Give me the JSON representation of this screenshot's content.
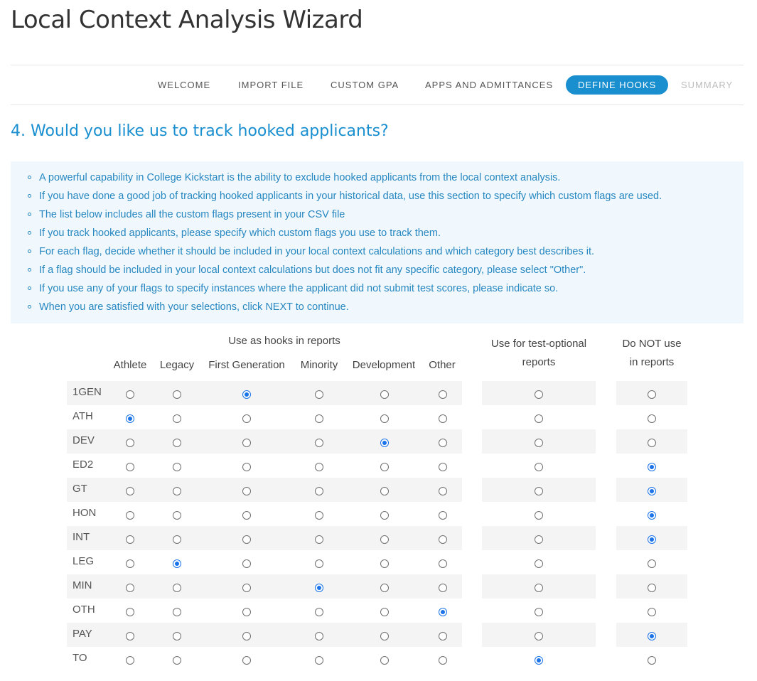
{
  "page": {
    "title": "Local Context Analysis Wizard"
  },
  "steps": [
    {
      "label": "WELCOME",
      "state": "done"
    },
    {
      "label": "IMPORT FILE",
      "state": "done"
    },
    {
      "label": "CUSTOM GPA",
      "state": "done"
    },
    {
      "label": "APPS AND ADMITTANCES",
      "state": "done"
    },
    {
      "label": "DEFINE HOOKS",
      "state": "active"
    },
    {
      "label": "SUMMARY",
      "state": "disabled"
    }
  ],
  "question": "4. Would you like us to track hooked applicants?",
  "instructions": [
    "A powerful capability in College Kickstart is the ability to exclude hooked applicants from the local context analysis.",
    "If you have done a good job of tracking hooked applicants in your historical data, use this section to specify which custom flags are used.",
    "The list below includes all the custom flags present in your CSV file",
    "If you track hooked applicants, please specify which custom flags you use to track them.",
    "For each flag, decide whether it should be included in your local context calculations and which category best describes it.",
    "If a flag should be included in your local context calculations but does not fit any specific category, please select \"Other\".",
    "If you use any of your flags to specify instances where the applicant did not submit test scores, please indicate so.",
    "When you are satisfied with your selections, click NEXT to continue."
  ],
  "table": {
    "group_header": "Use as hooks in reports",
    "hook_columns": [
      "Athlete",
      "Legacy",
      "First Generation",
      "Minority",
      "Development",
      "Other"
    ],
    "test_optional_header": [
      "Use for test-optional",
      "reports"
    ],
    "not_use_header": [
      "Do NOT use",
      "in reports"
    ],
    "option_keys": [
      "athlete",
      "legacy",
      "first_generation",
      "minority",
      "development",
      "other",
      "test_optional",
      "not_use"
    ],
    "rows": [
      {
        "flag": "1GEN",
        "selected": "first_generation"
      },
      {
        "flag": "ATH",
        "selected": "athlete"
      },
      {
        "flag": "DEV",
        "selected": "development"
      },
      {
        "flag": "ED2",
        "selected": "not_use"
      },
      {
        "flag": "GT",
        "selected": "not_use"
      },
      {
        "flag": "HON",
        "selected": "not_use"
      },
      {
        "flag": "INT",
        "selected": "not_use"
      },
      {
        "flag": "LEG",
        "selected": "legacy"
      },
      {
        "flag": "MIN",
        "selected": "minority"
      },
      {
        "flag": "OTH",
        "selected": "other"
      },
      {
        "flag": "PAY",
        "selected": "not_use"
      },
      {
        "flag": "TO",
        "selected": "test_optional"
      }
    ]
  }
}
